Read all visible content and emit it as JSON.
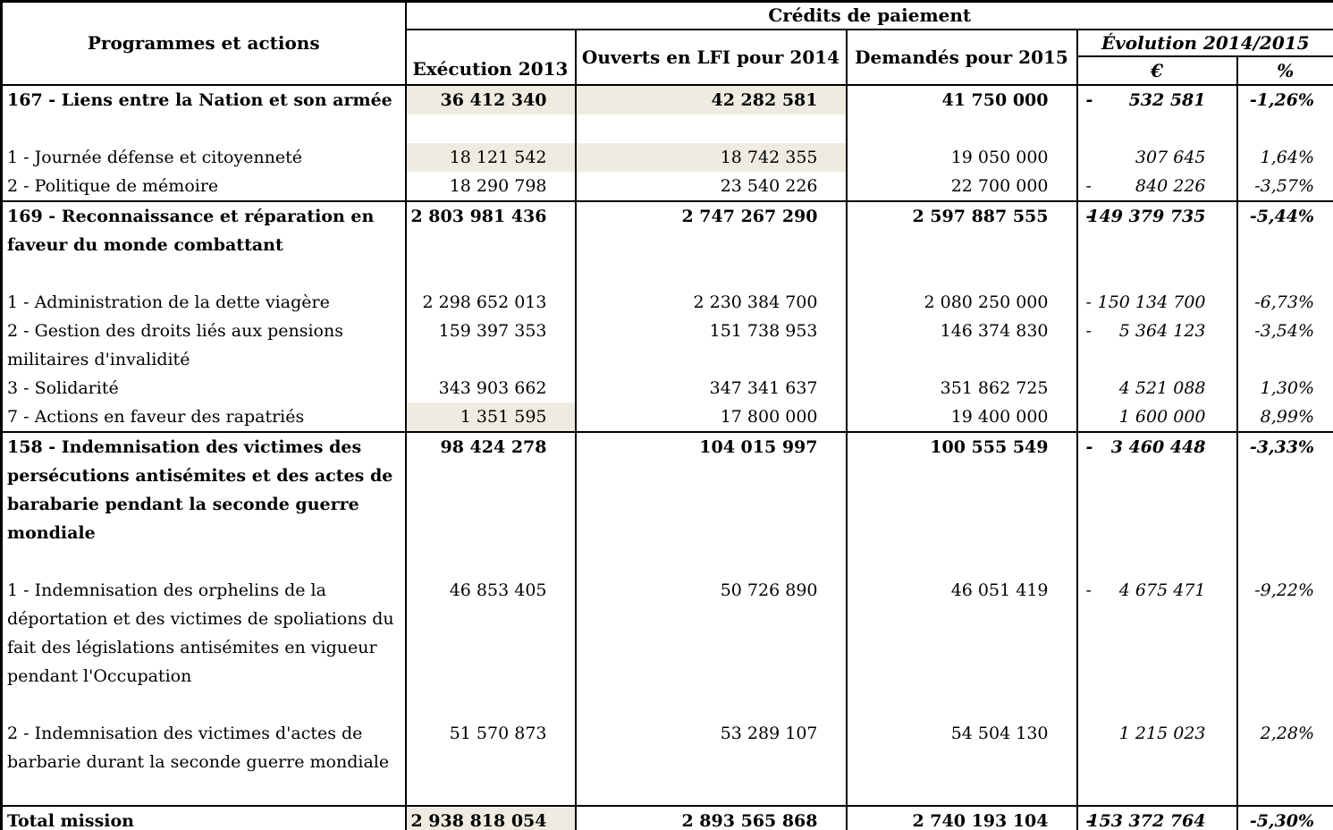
{
  "table": {
    "corner_header": "Programmes et actions",
    "group_header": "Crédits de paiement",
    "columns": {
      "exec": "Exécution 2013",
      "lfi": "Ouverts en LFI pour 2014",
      "dem": "Demandés pour 2015",
      "evo": "Évolution 2014/2015",
      "evo_euro": "€",
      "evo_pct": "%"
    },
    "colors": {
      "shaded_cell": "#eeece1",
      "border": "#000000",
      "background": "#ffffff"
    },
    "rows": [
      {
        "label": "167 - Liens entre la Nation et son armée",
        "exec": "36 412 340",
        "lfi": "42 282 581",
        "dem": "41 750 000",
        "evo_sign": "-",
        "evo_value": "532 581",
        "evo_pct": "-1,26%"
      },
      {
        "label": "1 - Journée défense et citoyenneté",
        "exec": "18 121 542",
        "lfi": "18 742 355",
        "dem": "19 050 000",
        "evo_sign": "",
        "evo_value": "307 645",
        "evo_pct": "1,64%"
      },
      {
        "label": "2 - Politique de mémoire",
        "exec": "18 290 798",
        "lfi": "23 540 226",
        "dem": "22 700 000",
        "evo_sign": "-",
        "evo_value": "840 226",
        "evo_pct": "-3,57%"
      },
      {
        "label": "169 - Reconnaissance et réparation en faveur du monde combattant",
        "exec": "2 803 981 436",
        "lfi": "2 747 267 290",
        "dem": "2 597 887 555",
        "evo_sign": "-",
        "evo_value": "149 379 735",
        "evo_pct": "-5,44%"
      },
      {
        "label": "1 -  Administration de la dette viagère",
        "exec": "2 298 652 013",
        "lfi": "2 230 384 700",
        "dem": "2 080 250 000",
        "evo_sign": "-",
        "evo_value": "150 134 700",
        "evo_pct": "-6,73%"
      },
      {
        "label": "2 -  Gestion des droits liés aux pensions militaires d'invalidité",
        "exec": "159 397 353",
        "lfi": "151 738 953",
        "dem": "146 374 830",
        "evo_sign": "-",
        "evo_value": "5 364 123",
        "evo_pct": "-3,54%"
      },
      {
        "label": "3 - Solidarité",
        "exec": "343 903 662",
        "lfi": "347 341 637",
        "dem": "351 862 725",
        "evo_sign": "",
        "evo_value": "4 521 088",
        "evo_pct": "1,30%"
      },
      {
        "label": "7 - Actions en faveur des rapatriés",
        "exec": "1 351 595",
        "lfi": "17 800 000",
        "dem": "19 400 000",
        "evo_sign": "",
        "evo_value": "1 600 000",
        "evo_pct": "8,99%"
      },
      {
        "label": "158 - Indemnisation des victimes des persécutions antisémites et des actes de barabarie pendant la seconde guerre mondiale",
        "exec": "98 424 278",
        "lfi": "104 015 997",
        "dem": "100 555 549",
        "evo_sign": "-",
        "evo_value": "3 460 448",
        "evo_pct": "-3,33%"
      },
      {
        "label": "1 - Indemnisation des orphelins de la déportation et des victimes de spoliations du fait des législations antisémites en vigueur pendant l'Occupation",
        "exec": "46 853 405",
        "lfi": "50 726 890",
        "dem": "46 051 419",
        "evo_sign": "-",
        "evo_value": "4 675 471",
        "evo_pct": "-9,22%"
      },
      {
        "label": "2 - Indemnisation des victimes d'actes de barbarie durant la seconde guerre mondiale",
        "exec": "51 570 873",
        "lfi": "53 289 107",
        "dem": "54 504 130",
        "evo_sign": "",
        "evo_value": "1 215 023",
        "evo_pct": "2,28%"
      },
      {
        "label": "Total mission",
        "exec": "2 938 818 054",
        "lfi": "2 893 565 868",
        "dem": "2 740 193 104",
        "evo_sign": "-",
        "evo_value": "153 372 764",
        "evo_pct": "-5,30%"
      }
    ]
  }
}
